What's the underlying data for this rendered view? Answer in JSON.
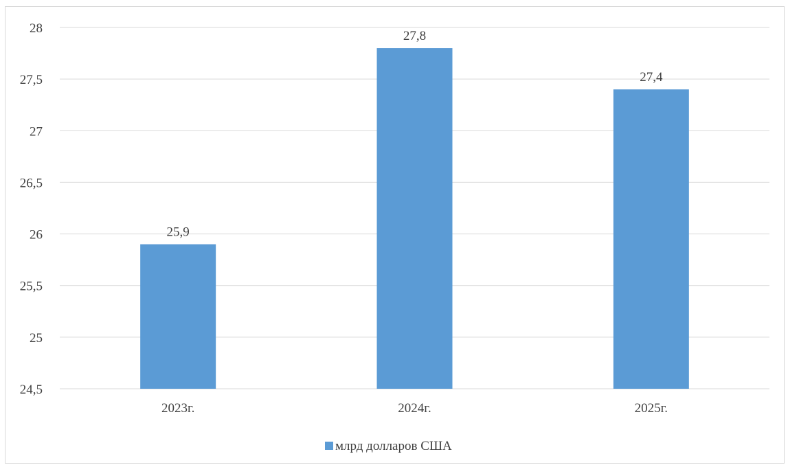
{
  "chart_data": {
    "type": "bar",
    "title": "",
    "xlabel": "",
    "ylabel": "",
    "categories": [
      "2023г.",
      "2024г.",
      "2025г."
    ],
    "series": [
      {
        "name": "млрд долларов США",
        "values": [
          25.9,
          27.8,
          27.4
        ],
        "value_labels": [
          "25,9",
          "27,8",
          "27,4"
        ],
        "color": "#5b9bd5"
      }
    ],
    "ylim": [
      24.5,
      28
    ],
    "yticks": [
      24.5,
      25,
      25.5,
      26,
      26.5,
      27,
      27.5,
      28
    ],
    "ytick_labels": [
      "24,5",
      "25",
      "25,5",
      "26",
      "26,5",
      "27",
      "27,5",
      "28"
    ],
    "grid": true,
    "legend_position": "bottom"
  },
  "colors": {
    "bar": "#5b9bd5",
    "gridline": "#d9d9d9",
    "text": "#404040"
  }
}
